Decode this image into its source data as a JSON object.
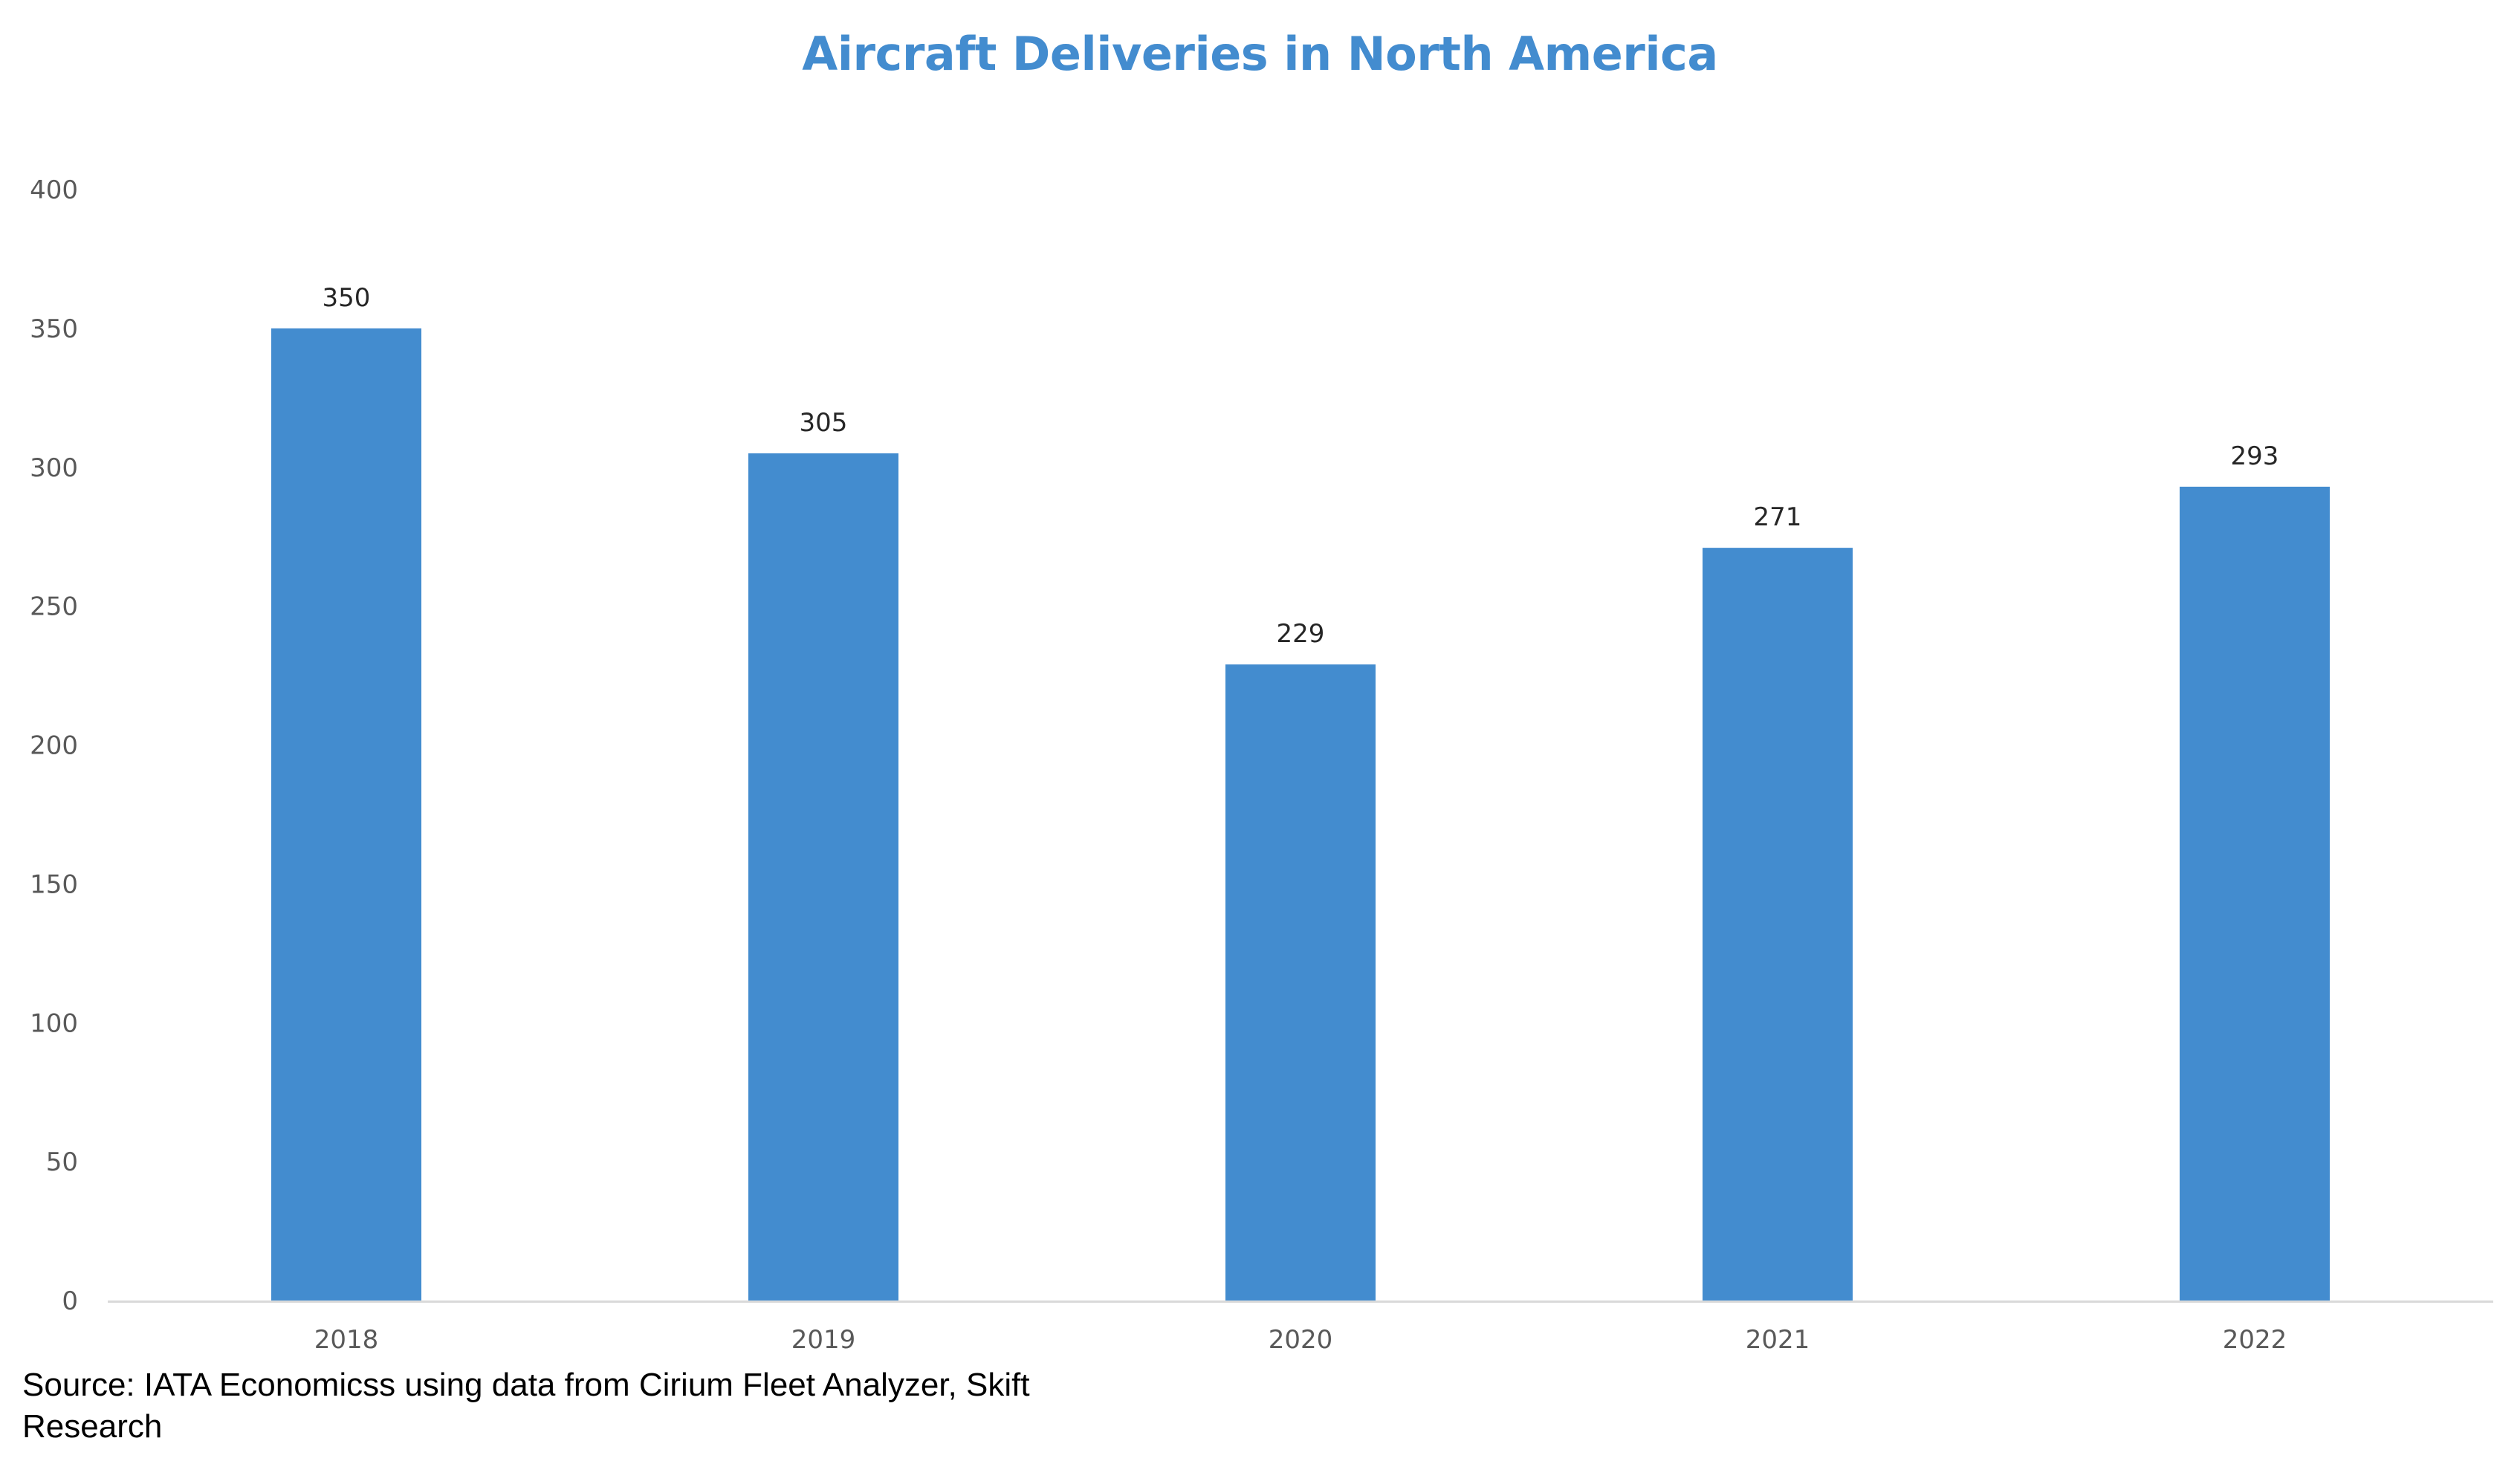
{
  "chart_data": {
    "type": "bar",
    "title": "Aircraft Deliveries in North America",
    "xlabel": "",
    "ylabel": "",
    "categories": [
      "2018",
      "2019",
      "2020",
      "2021",
      "2022"
    ],
    "values": [
      350,
      305,
      229,
      271,
      293
    ],
    "data_labels": [
      "350",
      "305",
      "229",
      "271",
      "293"
    ],
    "ylim": [
      0,
      400
    ],
    "yticks": [
      "0",
      "50",
      "100",
      "150",
      "200",
      "250",
      "300",
      "350",
      "400"
    ],
    "grid": false,
    "legend": "none",
    "colors": {
      "bar": "#438ccf",
      "title": "#438ccf",
      "axis": "#d9d9d9"
    }
  },
  "source": "Source: IATA Economicss using data from Cirium Fleet Analyzer, Skift Research"
}
